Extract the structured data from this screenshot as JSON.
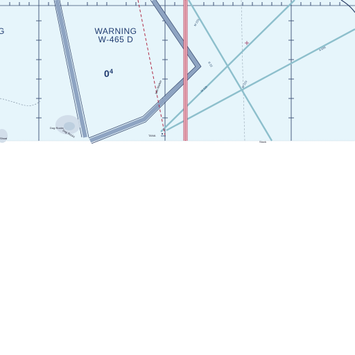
{
  "warning_area": {
    "title": "WARNING",
    "designation": "W-465 D",
    "partial_label": "G"
  },
  "max_elevation_figure": {
    "major": "0",
    "minor": "4"
  },
  "place_labels": {
    "dog_rocks": "Dog Rocks",
    "tana": "TANA",
    "dog_rocks_small": "Dog Rocks",
    "shoal_small": "Shoal",
    "stock": "Stock",
    "west_islet": "Islet Marker"
  },
  "route_labels": {
    "route_a": "M 229",
    "route_b": "M 329",
    "route_c": "A 699",
    "route_d": "M 229",
    "route_e": "R 22"
  },
  "colors": {
    "water": "#e6f5fb",
    "restricted_blue": "#8ea4c2",
    "route_teal": "#8dbfcc",
    "boundary_dark": "#2b3e66",
    "adiz_red": "#b02a46",
    "text_navy": "#1f3b70"
  }
}
